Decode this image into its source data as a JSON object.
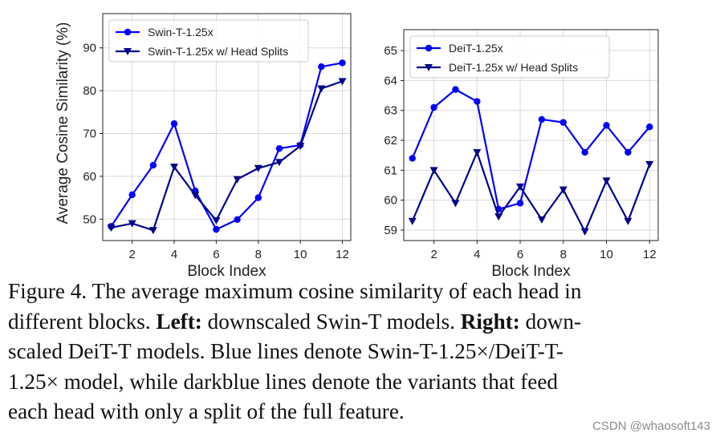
{
  "chart_data": [
    {
      "type": "line",
      "xlabel": "Block Index",
      "ylabel": "Average Cosine Similarity (%)",
      "xlim": [
        0.6,
        12.4
      ],
      "ylim": [
        45,
        98
      ],
      "xticks": [
        2,
        4,
        6,
        8,
        10,
        12
      ],
      "yticks": [
        50,
        60,
        70,
        80,
        90
      ],
      "grid": true,
      "legend": "top-left",
      "x": [
        1,
        2,
        3,
        4,
        5,
        6,
        7,
        8,
        9,
        10,
        11,
        12
      ],
      "series": [
        {
          "name": "Swin-T-1.25x",
          "marker": "circle",
          "color": "#0000ff",
          "values": [
            48.3,
            55.7,
            62.6,
            72.3,
            56.6,
            47.6,
            49.9,
            55.0,
            66.5,
            67.3,
            85.6,
            86.5
          ]
        },
        {
          "name": "Swin-T-1.25x w/ Head Splits",
          "marker": "triangle-down",
          "color": "#00008b",
          "values": [
            48.0,
            49.0,
            47.4,
            62.2,
            55.6,
            49.7,
            59.3,
            61.9,
            63.3,
            67.1,
            80.5,
            82.2
          ]
        }
      ]
    },
    {
      "type": "line",
      "xlabel": "Block Index",
      "ylabel": "",
      "xlim": [
        0.6,
        12.4
      ],
      "ylim": [
        58.65,
        65.7
      ],
      "xticks": [
        2,
        4,
        6,
        8,
        10,
        12
      ],
      "yticks": [
        59,
        60,
        61,
        62,
        63,
        64,
        65
      ],
      "grid": true,
      "legend": "top-left",
      "x": [
        1,
        2,
        3,
        4,
        5,
        6,
        7,
        8,
        9,
        10,
        11,
        12
      ],
      "series": [
        {
          "name": "DeiT-1.25x",
          "marker": "circle",
          "color": "#0000ff",
          "values": [
            61.4,
            63.1,
            63.7,
            63.3,
            59.7,
            59.9,
            62.7,
            62.6,
            61.6,
            62.5,
            61.6,
            62.45
          ]
        },
        {
          "name": "DeiT-1.25x w/ Head Splits",
          "marker": "triangle-down",
          "color": "#00008b",
          "values": [
            59.3,
            61.0,
            59.9,
            61.6,
            59.45,
            60.45,
            59.35,
            60.35,
            58.95,
            60.65,
            59.3,
            61.2
          ]
        }
      ]
    }
  ],
  "caption": {
    "l1": "Figure 4. The average maximum cosine similarity of each head in",
    "l2a": "different blocks. ",
    "l2b": "Left:",
    "l2c": " downscaled Swin-T models. ",
    "l2d": "Right:",
    "l2e": " down-",
    "l3": "scaled DeiT-T models. Blue lines denote Swin-T-1.25×/DeiT-T-",
    "l4": "1.25× model, while darkblue lines denote the variants that feed",
    "l5": "each head with only a split of the full feature."
  },
  "watermark": "CSDN @whaosoft143"
}
